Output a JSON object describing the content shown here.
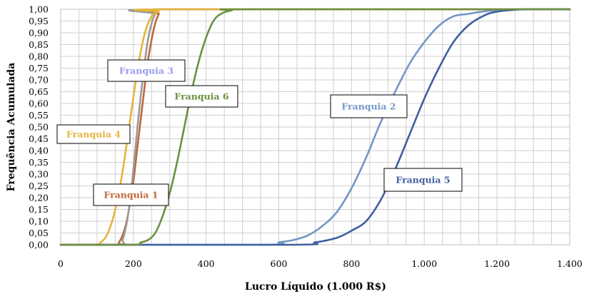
{
  "chart_data": {
    "type": "line",
    "title": "",
    "xlabel": "Lucro Líquido (1.000 R$)",
    "ylabel": "Frequência Acumulada",
    "xlim": [
      0,
      1400
    ],
    "ylim": [
      0,
      1
    ],
    "grid": true,
    "x_ticks": [
      {
        "v": 0,
        "label": "0"
      },
      {
        "v": 200,
        "label": "200"
      },
      {
        "v": 400,
        "label": "400"
      },
      {
        "v": 600,
        "label": "600"
      },
      {
        "v": 800,
        "label": "800"
      },
      {
        "v": 1000,
        "label": "1.000"
      },
      {
        "v": 1200,
        "label": "1.200"
      },
      {
        "v": 1400,
        "label": "1.400"
      }
    ],
    "y_ticks": [
      {
        "v": 0.0,
        "label": "0,00"
      },
      {
        "v": 0.05,
        "label": "0,05"
      },
      {
        "v": 0.1,
        "label": "0,10"
      },
      {
        "v": 0.15,
        "label": "0,15"
      },
      {
        "v": 0.2,
        "label": "0,20"
      },
      {
        "v": 0.25,
        "label": "0,25"
      },
      {
        "v": 0.3,
        "label": "0,30"
      },
      {
        "v": 0.35,
        "label": "0,35"
      },
      {
        "v": 0.4,
        "label": "0,40"
      },
      {
        "v": 0.45,
        "label": "0,45"
      },
      {
        "v": 0.5,
        "label": "0,50"
      },
      {
        "v": 0.55,
        "label": "0,55"
      },
      {
        "v": 0.6,
        "label": "0,60"
      },
      {
        "v": 0.65,
        "label": "0,65"
      },
      {
        "v": 0.7,
        "label": "0,70"
      },
      {
        "v": 0.75,
        "label": "0,75"
      },
      {
        "v": 0.8,
        "label": "0,80"
      },
      {
        "v": 0.85,
        "label": "0,85"
      },
      {
        "v": 0.9,
        "label": "0,90"
      },
      {
        "v": 0.95,
        "label": "0,95"
      },
      {
        "v": 1.0,
        "label": "1,00"
      }
    ],
    "series": [
      {
        "name": "Franquia 1",
        "color": "#c0683a",
        "points": [
          [
            150,
            0.0
          ],
          [
            160,
            0.01
          ],
          [
            170,
            0.04
          ],
          [
            180,
            0.09
          ],
          [
            190,
            0.17
          ],
          [
            200,
            0.27
          ],
          [
            210,
            0.4
          ],
          [
            220,
            0.53
          ],
          [
            230,
            0.66
          ],
          [
            240,
            0.78
          ],
          [
            250,
            0.87
          ],
          [
            260,
            0.94
          ],
          [
            270,
            0.98
          ],
          [
            280,
            1.0
          ]
        ]
      },
      {
        "name": "Franquia 2",
        "color": "#7397c6",
        "points": [
          [
            560,
            0.0
          ],
          [
            600,
            0.01
          ],
          [
            640,
            0.02
          ],
          [
            680,
            0.04
          ],
          [
            720,
            0.08
          ],
          [
            760,
            0.14
          ],
          [
            800,
            0.24
          ],
          [
            840,
            0.37
          ],
          [
            880,
            0.52
          ],
          [
            920,
            0.65
          ],
          [
            960,
            0.77
          ],
          [
            1000,
            0.86
          ],
          [
            1040,
            0.93
          ],
          [
            1080,
            0.97
          ],
          [
            1120,
            0.98
          ],
          [
            1160,
            0.99
          ],
          [
            1240,
            1.0
          ]
        ]
      },
      {
        "name": "Franquia 3",
        "color": "#9a9a9a",
        "points": [
          [
            160,
            0.0
          ],
          [
            170,
            0.02
          ],
          [
            180,
            0.08
          ],
          [
            190,
            0.18
          ],
          [
            200,
            0.32
          ],
          [
            210,
            0.48
          ],
          [
            220,
            0.63
          ],
          [
            230,
            0.76
          ],
          [
            240,
            0.87
          ],
          [
            250,
            0.94
          ],
          [
            260,
            0.98
          ],
          [
            275,
            1.0
          ]
        ]
      },
      {
        "name": "Franquia 4",
        "color": "#e5b43d",
        "points": [
          [
            90,
            0.0
          ],
          [
            110,
            0.01
          ],
          [
            130,
            0.05
          ],
          [
            150,
            0.15
          ],
          [
            170,
            0.31
          ],
          [
            190,
            0.52
          ],
          [
            210,
            0.73
          ],
          [
            230,
            0.89
          ],
          [
            250,
            0.97
          ],
          [
            270,
            0.99
          ],
          [
            290,
            1.0
          ]
        ]
      },
      {
        "name": "Franquia 5",
        "color": "#3f5fa0",
        "points": [
          [
            640,
            0.0
          ],
          [
            700,
            0.01
          ],
          [
            760,
            0.03
          ],
          [
            800,
            0.06
          ],
          [
            840,
            0.1
          ],
          [
            880,
            0.19
          ],
          [
            920,
            0.32
          ],
          [
            960,
            0.47
          ],
          [
            1000,
            0.62
          ],
          [
            1040,
            0.75
          ],
          [
            1080,
            0.86
          ],
          [
            1120,
            0.93
          ],
          [
            1160,
            0.97
          ],
          [
            1200,
            0.99
          ],
          [
            1280,
            1.0
          ]
        ]
      },
      {
        "name": "Franquia 6",
        "color": "#6b9040",
        "points": [
          [
            200,
            0.0
          ],
          [
            220,
            0.01
          ],
          [
            240,
            0.02
          ],
          [
            260,
            0.05
          ],
          [
            280,
            0.12
          ],
          [
            300,
            0.22
          ],
          [
            320,
            0.35
          ],
          [
            340,
            0.5
          ],
          [
            360,
            0.65
          ],
          [
            380,
            0.78
          ],
          [
            400,
            0.88
          ],
          [
            420,
            0.95
          ],
          [
            440,
            0.98
          ],
          [
            470,
            0.995
          ],
          [
            520,
            1.0
          ]
        ]
      }
    ],
    "annotations": [
      {
        "text": "Franquia 1",
        "color": "#c0683a"
      },
      {
        "text": "Franquia 2",
        "color": "#7397c6"
      },
      {
        "text": "Franquia 3",
        "color": "#9a9aee"
      },
      {
        "text": "Franquia 4",
        "color": "#e5b43d"
      },
      {
        "text": "Franquia 5",
        "color": "#3f5fa0"
      },
      {
        "text": "Franquia 6",
        "color": "#6b9040"
      }
    ]
  }
}
